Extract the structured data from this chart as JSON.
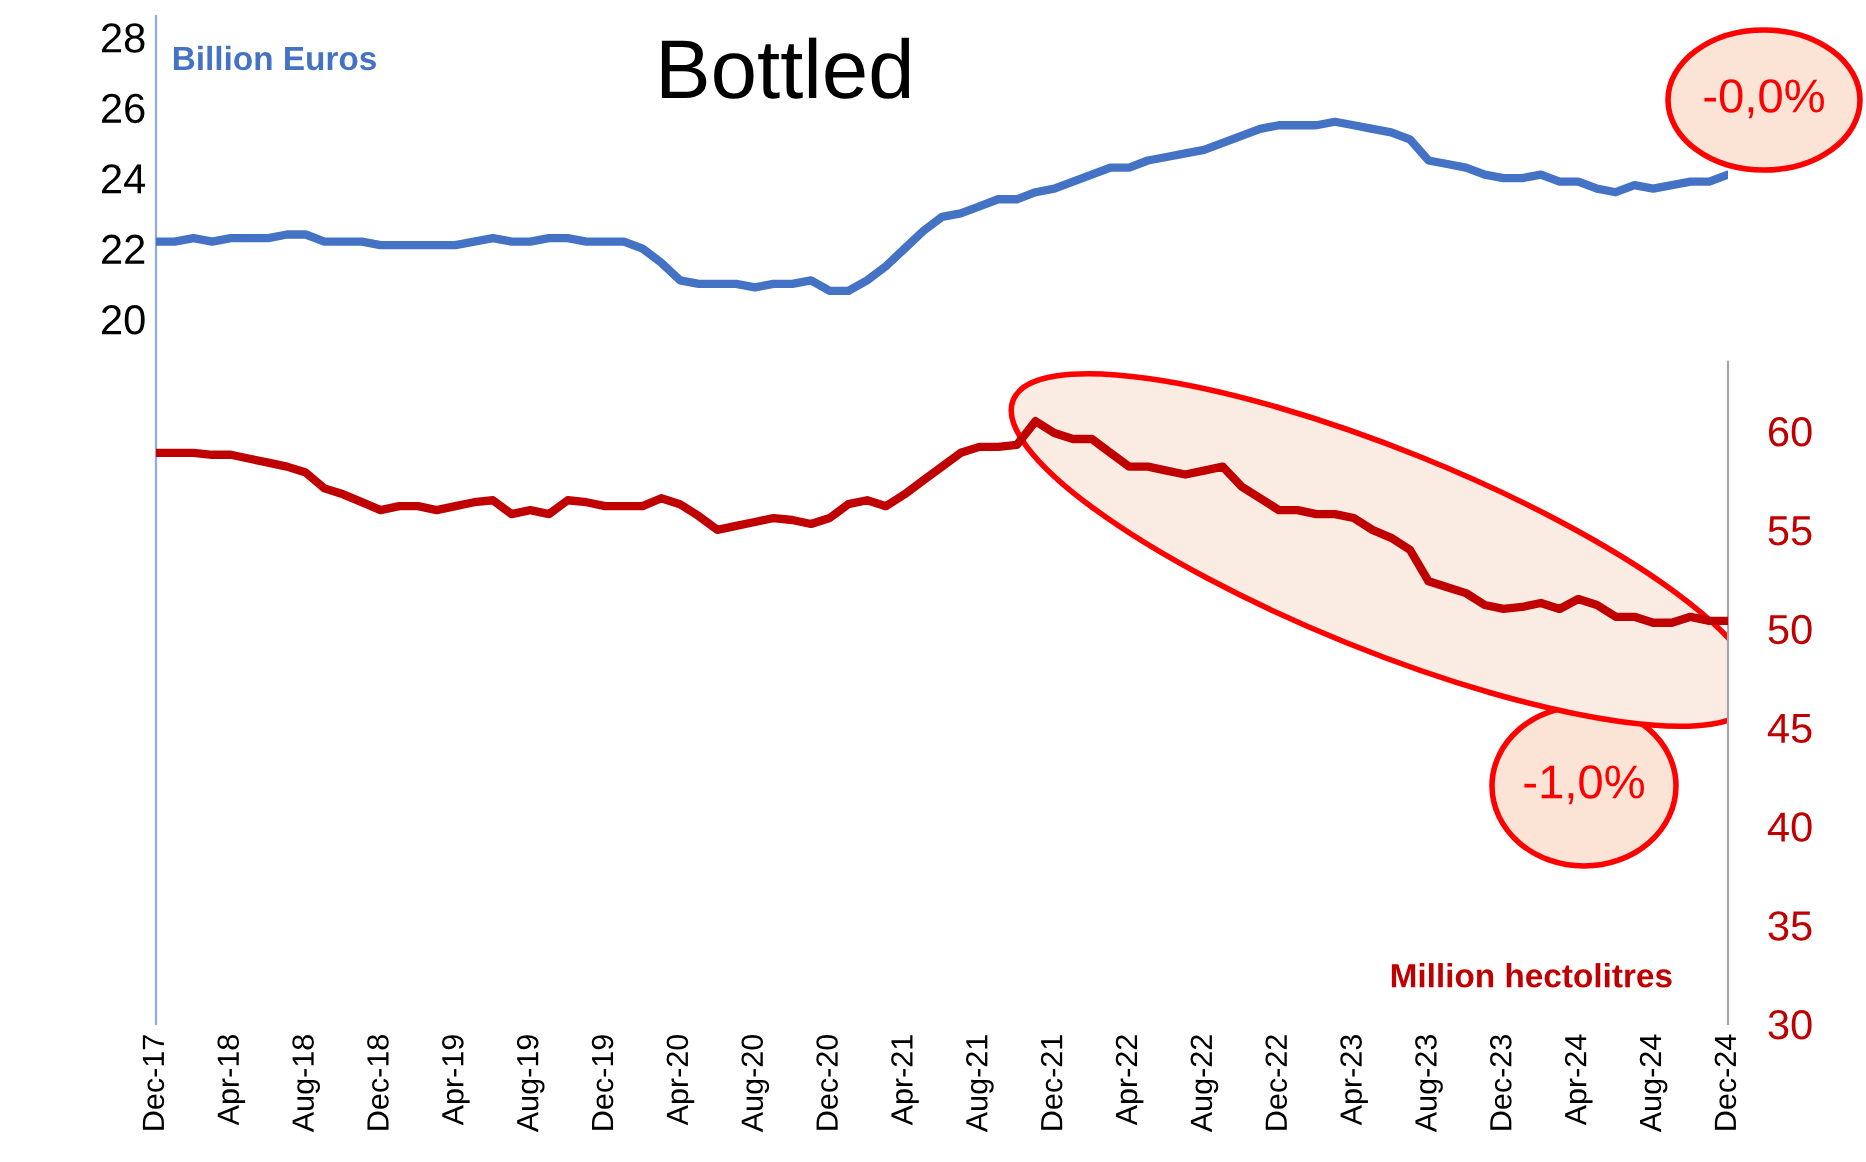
{
  "chart_data": {
    "type": "line",
    "title": "Bottled",
    "ylabel": "Billion Euros",
    "y2label": "Million hectolitres",
    "annotations": [
      "-0,0%",
      "-1,0%"
    ],
    "categories": [
      "Dec-17",
      null,
      null,
      null,
      "Apr-18",
      null,
      null,
      null,
      "Aug-18",
      null,
      null,
      null,
      "Dec-18",
      null,
      null,
      null,
      "Apr-19",
      null,
      null,
      null,
      "Aug-19",
      null,
      null,
      null,
      "Dec-19",
      null,
      null,
      null,
      "Apr-20",
      null,
      null,
      null,
      "Aug-20",
      null,
      null,
      null,
      "Dec-20",
      null,
      null,
      null,
      "Apr-21",
      null,
      null,
      null,
      "Aug-21",
      null,
      null,
      null,
      "Dec-21",
      null,
      null,
      null,
      "Apr-22",
      null,
      null,
      null,
      "Aug-22",
      null,
      null,
      null,
      "Dec-22",
      null,
      null,
      null,
      "Apr-23",
      null,
      null,
      null,
      "Aug-23",
      null,
      null,
      null,
      "Dec-23",
      null,
      null,
      null,
      "Apr-24",
      null,
      null,
      null,
      "Aug-24",
      null,
      null,
      null,
      "Dec-24"
    ],
    "series": [
      {
        "color": "#4472c4",
        "axis": "y",
        "values": [
          22.2,
          22.2,
          22.3,
          22.2,
          22.3,
          22.3,
          22.3,
          22.4,
          22.4,
          22.2,
          22.2,
          22.2,
          22.1,
          22.1,
          22.1,
          22.1,
          22.1,
          22.2,
          22.3,
          22.2,
          22.2,
          22.3,
          22.3,
          22.2,
          22.2,
          22.2,
          22.0,
          21.6,
          21.1,
          21.0,
          21.0,
          21.0,
          20.9,
          21.0,
          21.0,
          21.1,
          20.8,
          20.8,
          21.1,
          21.5,
          22.0,
          22.5,
          22.9,
          23.0,
          23.2,
          23.4,
          23.4,
          23.6,
          23.7,
          23.9,
          24.1,
          24.3,
          24.3,
          24.5,
          24.6,
          24.7,
          24.8,
          25.0,
          25.2,
          25.4,
          25.5,
          25.5,
          25.5,
          25.6,
          25.5,
          25.4,
          25.3,
          25.1,
          24.5,
          24.4,
          24.3,
          24.1,
          24.0,
          24.0,
          24.1,
          23.9,
          23.9,
          23.7,
          23.6,
          23.8,
          23.7,
          23.8,
          23.9,
          23.9,
          24.1
        ]
      },
      {
        "color": "#c00000",
        "axis": "y2",
        "values": [
          58.9,
          58.9,
          58.9,
          58.8,
          58.8,
          58.6,
          58.4,
          58.2,
          57.9,
          57.1,
          56.8,
          56.4,
          56.0,
          56.2,
          56.2,
          56.0,
          56.2,
          56.4,
          56.5,
          55.8,
          56.0,
          55.8,
          56.5,
          56.4,
          56.2,
          56.2,
          56.2,
          56.6,
          56.3,
          55.7,
          55.0,
          55.2,
          55.4,
          55.6,
          55.5,
          55.3,
          55.6,
          56.3,
          56.5,
          56.2,
          56.8,
          57.5,
          58.2,
          58.9,
          59.2,
          59.2,
          59.3,
          60.5,
          59.9,
          59.6,
          59.6,
          58.9,
          58.2,
          58.2,
          58.0,
          57.8,
          58.0,
          58.2,
          57.2,
          56.6,
          56.0,
          56.0,
          55.8,
          55.8,
          55.6,
          55.0,
          54.6,
          54.0,
          52.4,
          52.1,
          51.8,
          51.2,
          51.0,
          51.1,
          51.3,
          51.0,
          51.5,
          51.2,
          50.6,
          50.6,
          50.3,
          50.3,
          50.6,
          50.4,
          50.4
        ]
      }
    ],
    "ylim": [
      0,
      28.6
    ],
    "yticks": [
      20,
      22,
      24,
      26,
      28
    ],
    "y2lim": [
      30,
      81
    ],
    "y2ticks": [
      30,
      35,
      40,
      45,
      50,
      55,
      60
    ]
  }
}
